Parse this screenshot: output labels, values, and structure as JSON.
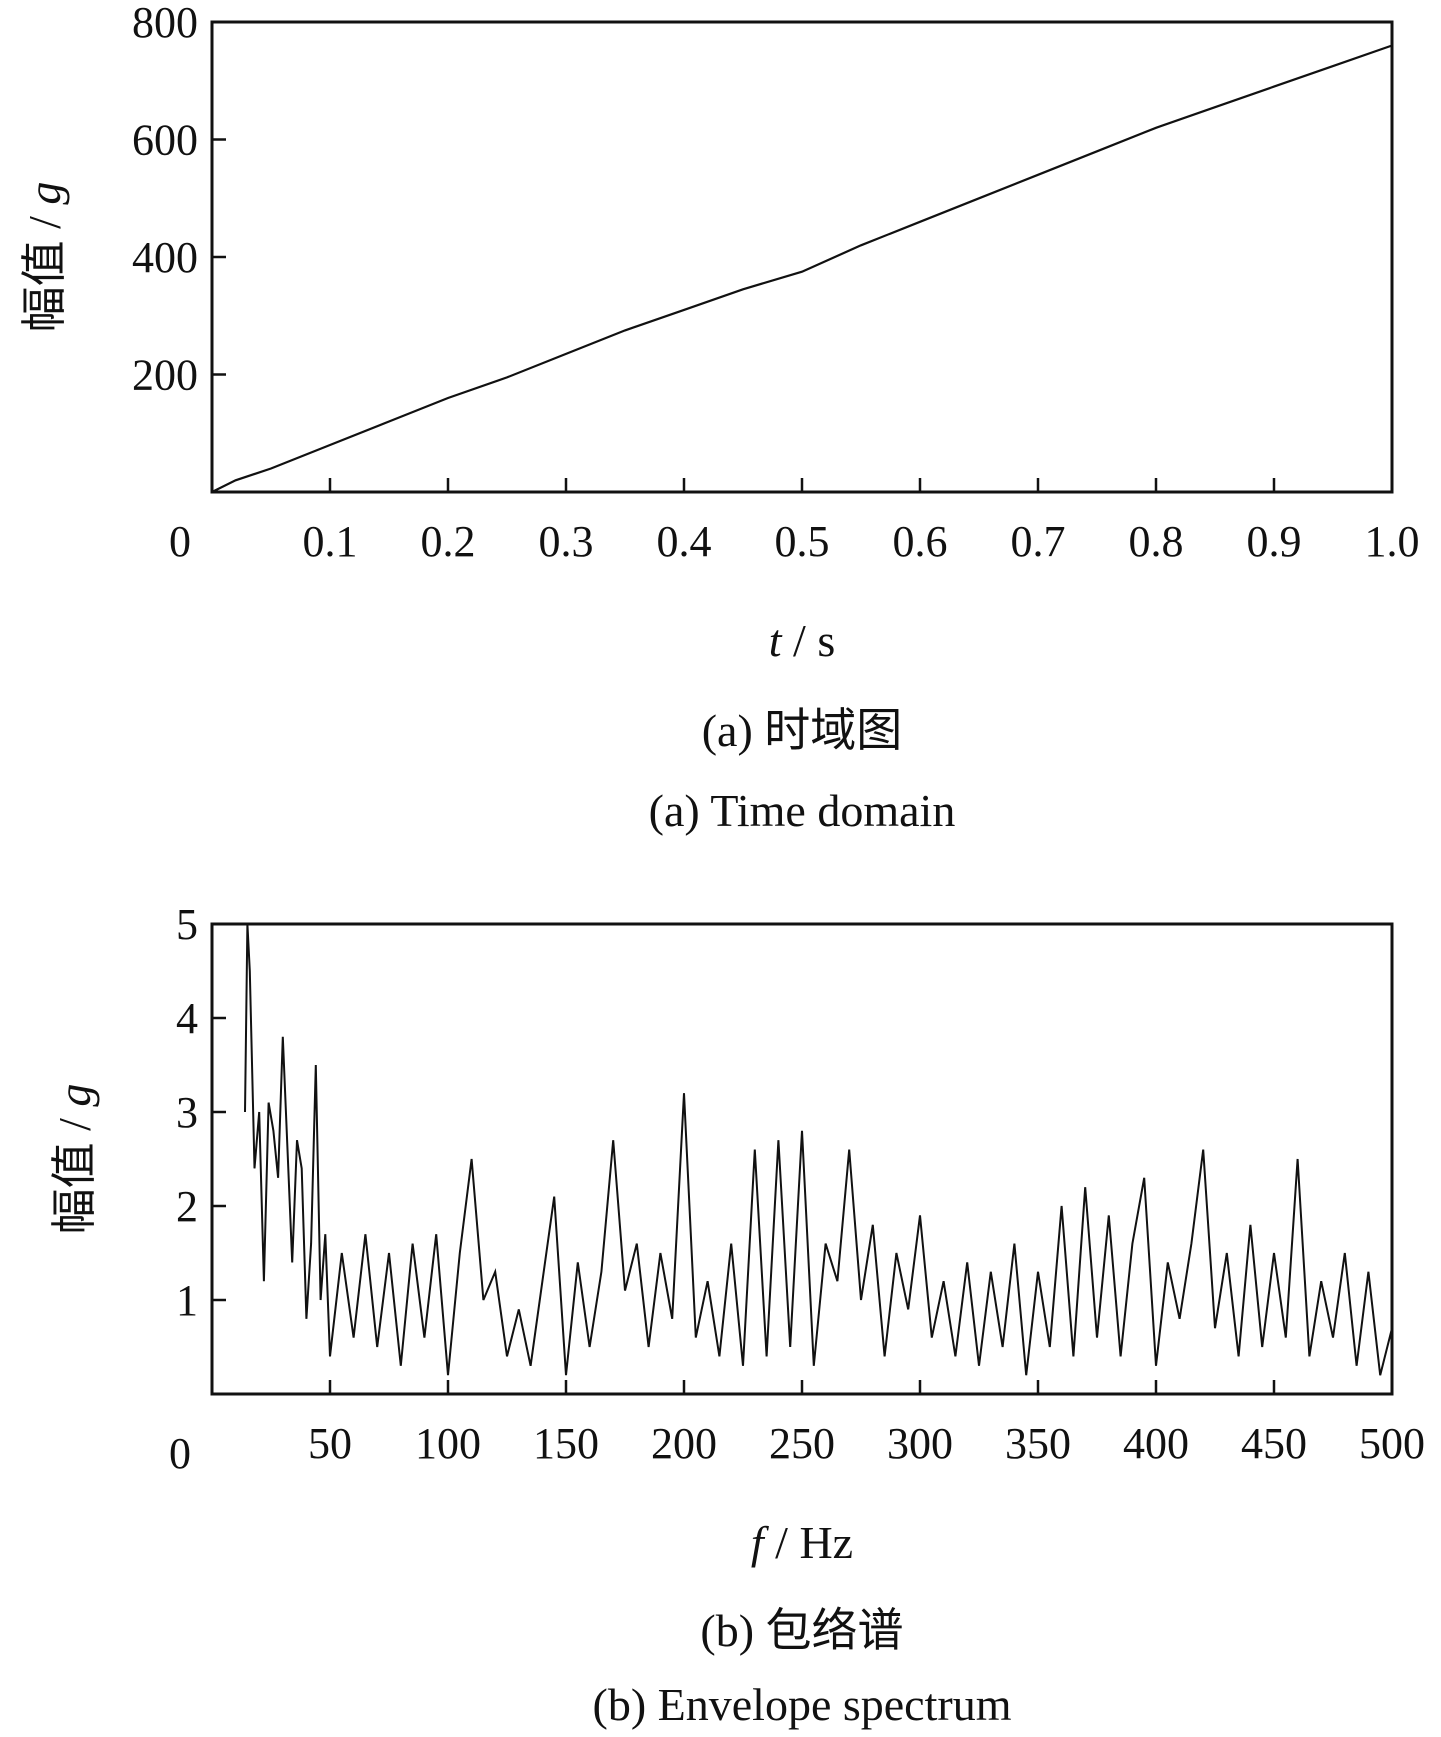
{
  "chart_data": [
    {
      "type": "line",
      "panel": "a",
      "caption_zh": "(a)  时域图",
      "caption_en": "(a)  Time domain",
      "xlabel_var": "t",
      "xlabel_unit": " / s",
      "ylabel_zh": "幅值",
      "ylabel_var": "g",
      "ylabel_sep": " / ",
      "xlim": [
        0,
        1.0
      ],
      "ylim": [
        0,
        800
      ],
      "x_zero_label": "0",
      "xticks": [
        "0.1",
        "0.2",
        "0.3",
        "0.4",
        "0.5",
        "0.6",
        "0.7",
        "0.8",
        "0.9",
        "1.0"
      ],
      "yticks": [
        "200",
        "400",
        "600",
        "800"
      ],
      "grid": false,
      "series": [
        {
          "x": [
            0,
            0.02,
            0.05,
            0.1,
            0.15,
            0.2,
            0.25,
            0.3,
            0.35,
            0.4,
            0.45,
            0.5,
            0.55,
            0.6,
            0.65,
            0.7,
            0.75,
            0.8,
            0.85,
            0.9,
            0.95,
            1.0
          ],
          "values": [
            0,
            20,
            40,
            80,
            120,
            160,
            195,
            235,
            275,
            310,
            345,
            375,
            420,
            460,
            500,
            540,
            580,
            620,
            655,
            690,
            725,
            760
          ]
        }
      ]
    },
    {
      "type": "line",
      "panel": "b",
      "caption_zh": "(b)  包络谱",
      "caption_en": "(b)  Envelope spectrum",
      "xlabel_var": "f",
      "xlabel_unit": " / Hz",
      "ylabel_zh": "幅值",
      "ylabel_var": "g",
      "ylabel_sep": " / ",
      "xlim": [
        0,
        500
      ],
      "ylim": [
        0,
        5
      ],
      "x_zero_label": "0",
      "xticks": [
        "50",
        "100",
        "150",
        "200",
        "250",
        "300",
        "350",
        "400",
        "450",
        "500"
      ],
      "yticks": [
        "1",
        "2",
        "3",
        "4",
        "5"
      ],
      "grid": false,
      "series": [
        {
          "x": [
            14,
            15,
            16,
            18,
            20,
            22,
            24,
            26,
            28,
            30,
            32,
            34,
            36,
            38,
            40,
            42,
            44,
            46,
            48,
            50,
            55,
            60,
            65,
            70,
            75,
            80,
            85,
            90,
            95,
            100,
            105,
            110,
            115,
            120,
            125,
            130,
            135,
            140,
            145,
            150,
            155,
            160,
            165,
            170,
            175,
            180,
            185,
            190,
            195,
            200,
            205,
            210,
            215,
            220,
            225,
            230,
            235,
            240,
            245,
            250,
            255,
            260,
            265,
            270,
            275,
            280,
            285,
            290,
            295,
            300,
            305,
            310,
            315,
            320,
            325,
            330,
            335,
            340,
            345,
            350,
            355,
            360,
            365,
            370,
            375,
            380,
            385,
            390,
            395,
            400,
            405,
            410,
            415,
            420,
            425,
            430,
            435,
            440,
            445,
            450,
            455,
            460,
            465,
            470,
            475,
            480,
            485,
            490,
            495,
            500
          ],
          "values": [
            3.0,
            5.0,
            4.5,
            2.4,
            3.0,
            1.2,
            3.1,
            2.8,
            2.3,
            3.8,
            2.6,
            1.4,
            2.7,
            2.4,
            0.8,
            1.6,
            3.5,
            1.0,
            1.7,
            0.4,
            1.5,
            0.6,
            1.7,
            0.5,
            1.5,
            0.3,
            1.6,
            0.6,
            1.7,
            0.2,
            1.5,
            2.5,
            1.0,
            1.3,
            0.4,
            0.9,
            0.3,
            1.2,
            2.1,
            0.2,
            1.4,
            0.5,
            1.3,
            2.7,
            1.1,
            1.6,
            0.5,
            1.5,
            0.8,
            3.2,
            0.6,
            1.2,
            0.4,
            1.6,
            0.3,
            2.6,
            0.4,
            2.7,
            0.5,
            2.8,
            0.3,
            1.6,
            1.2,
            2.6,
            1.0,
            1.8,
            0.4,
            1.5,
            0.9,
            1.9,
            0.6,
            1.2,
            0.4,
            1.4,
            0.3,
            1.3,
            0.5,
            1.6,
            0.2,
            1.3,
            0.5,
            2.0,
            0.4,
            2.2,
            0.6,
            1.9,
            0.4,
            1.6,
            2.3,
            0.3,
            1.4,
            0.8,
            1.6,
            2.6,
            0.7,
            1.5,
            0.4,
            1.8,
            0.5,
            1.5,
            0.6,
            2.5,
            0.4,
            1.2,
            0.6,
            1.5,
            0.3,
            1.3,
            0.2,
            0.7
          ]
        }
      ]
    }
  ]
}
